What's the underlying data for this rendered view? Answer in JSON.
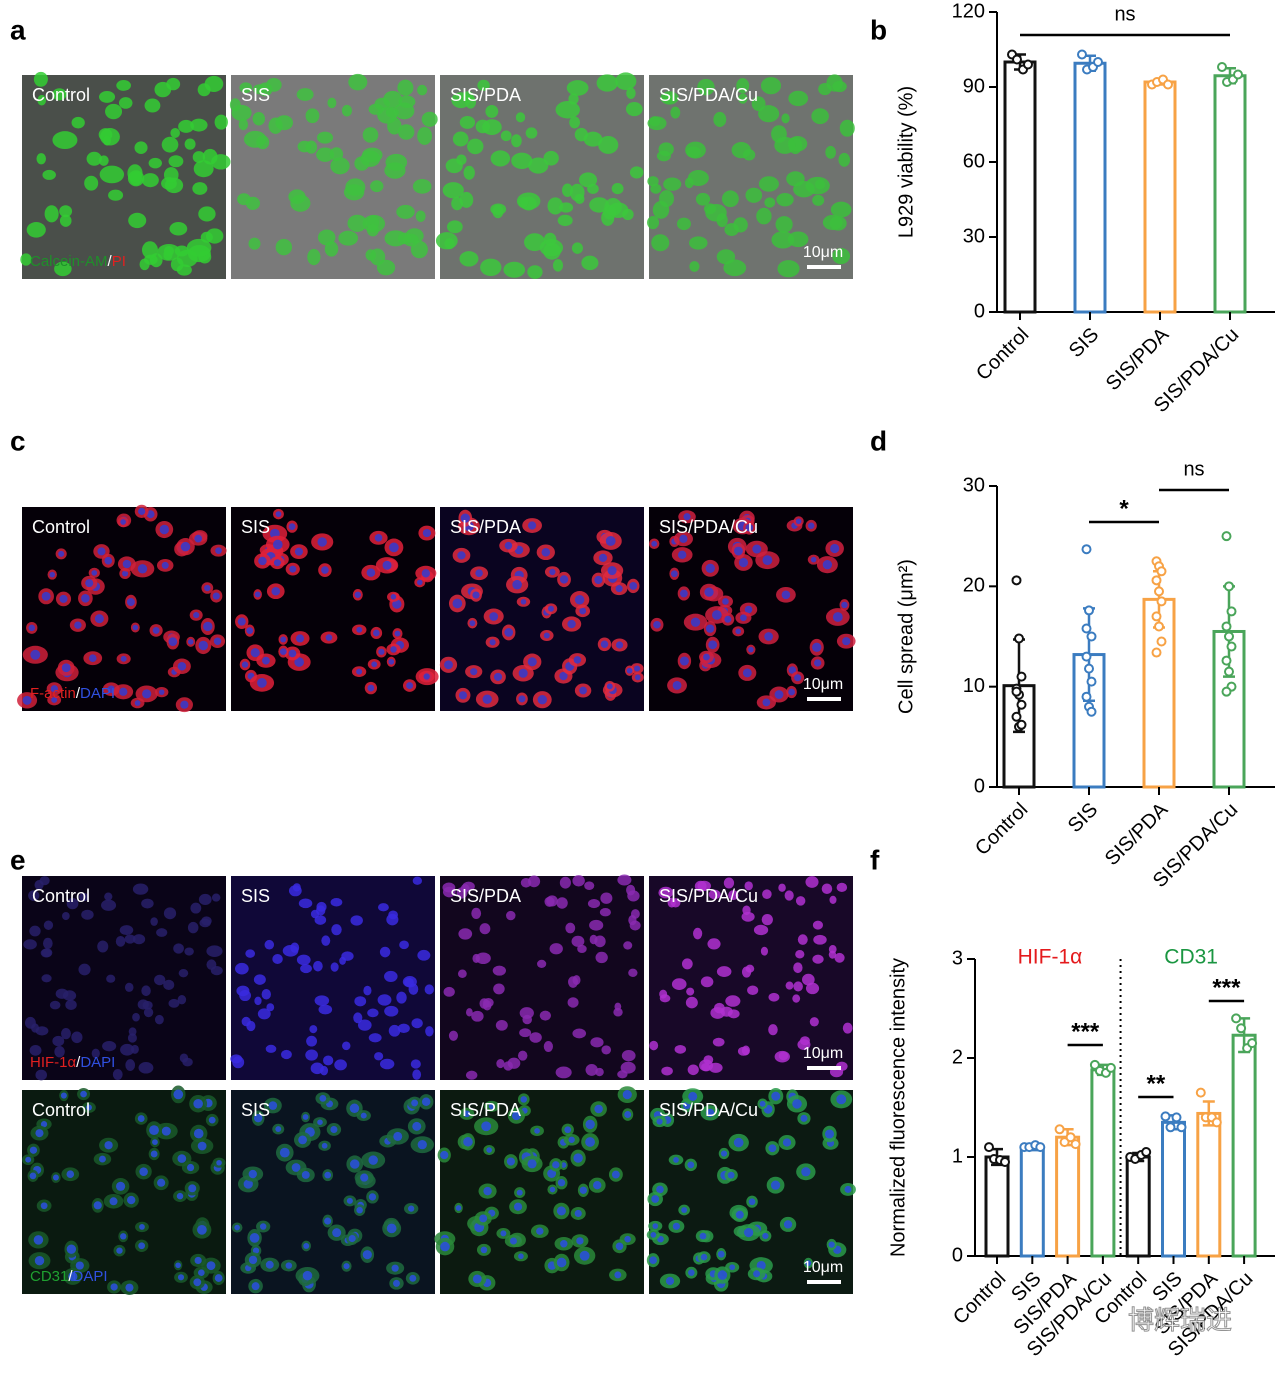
{
  "panel_letters": [
    "a",
    "b",
    "c",
    "d",
    "e",
    "f"
  ],
  "image_rows": [
    {
      "labels": [
        "Control",
        "SIS",
        "SIS/PDA",
        "SIS/PDA/Cu"
      ],
      "stain": [
        {
          "text": "Calcein-AM",
          "color": "#1f8f2a"
        },
        {
          "text": "/",
          "color": "#ffffff"
        },
        {
          "text": "PI",
          "color": "#e02020"
        }
      ],
      "scale_bar": "10μm"
    },
    {
      "labels": [
        "Control",
        "SIS",
        "SIS/PDA",
        "SIS/PDA/Cu"
      ],
      "stain": [
        {
          "text": "F-actin",
          "color": "#e02020"
        },
        {
          "text": "/",
          "color": "#ffffff"
        },
        {
          "text": "DAPI",
          "color": "#3050e0"
        }
      ],
      "scale_bar": "10μm"
    },
    {
      "labels": [
        "Control",
        "SIS",
        "SIS/PDA",
        "SIS/PDA/Cu"
      ],
      "stain": [
        {
          "text": "HIF-1α",
          "color": "#e02020"
        },
        {
          "text": "/",
          "color": "#ffffff"
        },
        {
          "text": "DAPI",
          "color": "#3050e0"
        }
      ],
      "scale_bar": "10μm"
    },
    {
      "labels": [
        "Control",
        "SIS",
        "SIS/PDA",
        "SIS/PDA/Cu"
      ],
      "stain": [
        {
          "text": "CD31",
          "color": "#1fa030"
        },
        {
          "text": "/",
          "color": "#ffffff"
        },
        {
          "text": "DAPI",
          "color": "#3050e0"
        }
      ],
      "scale_bar": "10μm"
    }
  ],
  "chart_data": [
    {
      "type": "bar",
      "ylabel": "L929 viability (%)",
      "categories": [
        "Control",
        "SIS",
        "SIS/PDA",
        "SIS/PDA/Cu"
      ],
      "values": [
        100,
        99.5,
        92,
        94.5
      ],
      "errors": [
        3,
        3,
        1,
        3
      ],
      "points": [
        [
          103,
          101,
          97,
          99
        ],
        [
          103,
          97,
          98,
          100
        ],
        [
          91,
          92,
          93,
          91
        ],
        [
          98,
          92,
          93,
          95
        ]
      ],
      "colors": [
        "#111111",
        "#3b7cc0",
        "#f7a245",
        "#4aa55a"
      ],
      "ylim": [
        0,
        120
      ],
      "yticks": [
        0,
        30,
        60,
        90,
        120
      ],
      "annotations": [
        {
          "text": "ns",
          "from": 0,
          "to": 3
        }
      ]
    },
    {
      "type": "bar",
      "ylabel": "Cell spread (μm²)",
      "categories": [
        "Control",
        "SIS",
        "SIS/PDA",
        "SIS/PDA/Cu"
      ],
      "values": [
        10.1,
        13.2,
        18.7,
        15.5
      ],
      "errors": [
        4.6,
        4.6,
        2.8,
        4.5
      ],
      "points": [
        [
          20.6,
          14.8,
          11,
          9.8,
          9.2,
          8.2,
          7,
          6,
          6.2,
          9.5
        ],
        [
          23.7,
          17.6,
          15,
          13,
          11.8,
          10.5,
          9,
          8,
          7.5,
          15.8
        ],
        [
          22.5,
          22,
          21.5,
          20.6,
          19.5,
          18.5,
          17,
          16,
          14.5,
          13.4
        ],
        [
          25,
          20,
          17.5,
          16,
          15,
          14,
          12.6,
          11.5,
          10,
          9.5
        ]
      ],
      "colors": [
        "#111111",
        "#3b7cc0",
        "#f7a245",
        "#4aa55a"
      ],
      "ylim": [
        0,
        30
      ],
      "yticks": [
        0,
        10,
        20,
        30
      ],
      "annotations": [
        {
          "text": "*",
          "from": 1,
          "to": 2
        },
        {
          "text": "ns",
          "from": 2,
          "to": 3
        }
      ]
    },
    {
      "type": "bar",
      "ylabel": "Normalized fluorescence intensity",
      "categories": [
        "Control",
        "SIS",
        "SIS/PDA",
        "SIS/PDA/Cu",
        "Control",
        "SIS",
        "SIS/PDA",
        "SIS/PDA/Cu"
      ],
      "values": [
        1.0,
        1.1,
        1.2,
        1.88,
        1.0,
        1.35,
        1.44,
        2.23
      ],
      "errors": [
        0.08,
        0.03,
        0.08,
        0.05,
        0.04,
        0.07,
        0.12,
        0.17
      ],
      "points": [
        [
          1.1,
          0.98,
          0.97,
          0.95
        ],
        [
          1.1,
          1.1,
          1.12,
          1.1
        ],
        [
          1.28,
          1.15,
          1.2,
          1.13
        ],
        [
          1.93,
          1.87,
          1.85,
          1.9
        ],
        [
          1.0,
          0.98,
          1.02,
          1.05
        ],
        [
          1.41,
          1.3,
          1.4,
          1.3
        ],
        [
          1.65,
          1.4,
          1.4,
          1.35
        ],
        [
          2.4,
          2.3,
          2.1,
          2.15
        ]
      ],
      "colors": [
        "#111111",
        "#3b7cc0",
        "#f7a245",
        "#4aa55a",
        "#111111",
        "#3b7cc0",
        "#f7a245",
        "#4aa55a"
      ],
      "ylim": [
        0,
        3
      ],
      "yticks": [
        0,
        1,
        2,
        3
      ],
      "group_labels": [
        {
          "text": "HIF-1α",
          "color": "#e41a1c"
        },
        {
          "text": "CD31",
          "color": "#1a9641"
        }
      ],
      "annotations": [
        {
          "text": "***",
          "from": 2,
          "to": 3
        },
        {
          "text": "**",
          "from": 4,
          "to": 5
        },
        {
          "text": "***",
          "from": 6,
          "to": 7
        }
      ]
    }
  ],
  "watermark": "博辉瑞进"
}
